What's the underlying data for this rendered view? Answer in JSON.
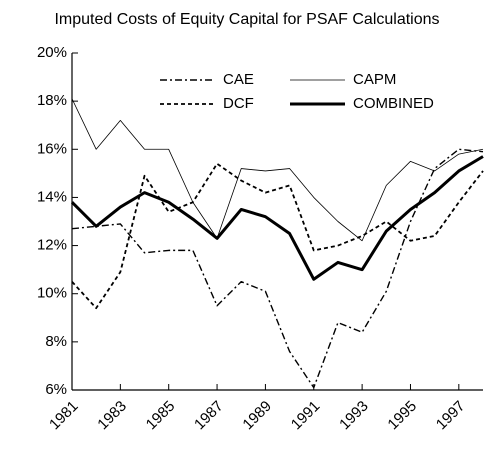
{
  "chart_data": {
    "type": "line",
    "title": "Imputed Costs of Equity Capital for PSAF Calculations",
    "x": [
      1981,
      1982,
      1983,
      1984,
      1985,
      1986,
      1987,
      1988,
      1989,
      1990,
      1991,
      1992,
      1993,
      1994,
      1995,
      1996,
      1997,
      1998
    ],
    "xlim": [
      1981,
      1998
    ],
    "xticks": [
      1981,
      1983,
      1985,
      1987,
      1989,
      1991,
      1993,
      1995,
      1997
    ],
    "ylim": [
      6,
      20
    ],
    "yticks": [
      {
        "value": 6,
        "label": "6%"
      },
      {
        "value": 8,
        "label": "8%"
      },
      {
        "value": 10,
        "label": "10%"
      },
      {
        "value": 12,
        "label": "12%"
      },
      {
        "value": 14,
        "label": "14%"
      },
      {
        "value": 16,
        "label": "16%"
      },
      {
        "value": 18,
        "label": "18%"
      },
      {
        "value": 20,
        "label": "20%"
      }
    ],
    "series": [
      {
        "name": "CAE",
        "color": "#000000",
        "line_style": "dash-dot",
        "values": [
          12.7,
          12.8,
          12.9,
          11.7,
          11.8,
          11.8,
          9.5,
          10.5,
          10.1,
          7.6,
          6.1,
          8.8,
          8.4,
          10.1,
          13.0,
          15.2,
          16.0,
          15.9
        ]
      },
      {
        "name": "DCF",
        "color": "#000000",
        "line_style": "dashed",
        "values": [
          10.5,
          9.4,
          10.9,
          14.9,
          13.4,
          13.8,
          15.4,
          14.7,
          14.2,
          14.5,
          11.8,
          12.0,
          12.4,
          13.0,
          12.2,
          12.4,
          13.8,
          15.1
        ]
      },
      {
        "name": "CAPM",
        "color": "#000000",
        "line_style": "thin",
        "values": [
          18.1,
          16.0,
          17.2,
          16.0,
          16.0,
          13.8,
          12.3,
          15.2,
          15.1,
          15.2,
          14.0,
          13.0,
          12.2,
          14.5,
          15.5,
          15.1,
          15.8,
          16.0
        ]
      },
      {
        "name": "COMBINED",
        "color": "#000000",
        "line_style": "thick",
        "values": [
          13.8,
          12.8,
          13.6,
          14.2,
          13.8,
          13.1,
          12.3,
          13.5,
          13.2,
          12.5,
          10.6,
          11.3,
          11.0,
          12.6,
          13.5,
          14.2,
          15.1,
          15.7
        ]
      }
    ]
  }
}
